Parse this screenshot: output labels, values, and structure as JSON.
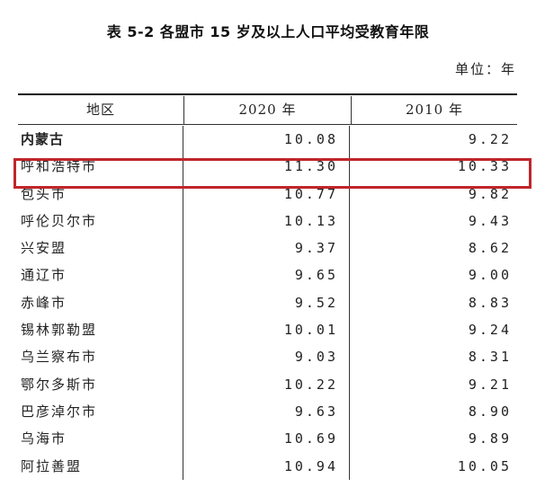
{
  "title": "表 5-2  各盟市 15 岁及以上人口平均受教育年限",
  "unit": "单位：年",
  "header": {
    "region": "地区",
    "year2020": "2020 年",
    "year2010": "2010 年"
  },
  "rows": [
    {
      "region": "内蒙古",
      "v2020": "10.08",
      "v2010": "9.22"
    },
    {
      "region": "呼和浩特市",
      "v2020": "11.30",
      "v2010": "10.33"
    },
    {
      "region": "包头市",
      "v2020": "10.77",
      "v2010": "9.82"
    },
    {
      "region": "呼伦贝尔市",
      "v2020": "10.13",
      "v2010": "9.43"
    },
    {
      "region": "兴安盟",
      "v2020": "9.37",
      "v2010": "8.62"
    },
    {
      "region": "通辽市",
      "v2020": "9.65",
      "v2010": "9.00"
    },
    {
      "region": "赤峰市",
      "v2020": "9.52",
      "v2010": "8.83"
    },
    {
      "region": "锡林郭勒盟",
      "v2020": "10.01",
      "v2010": "9.24"
    },
    {
      "region": "乌兰察布市",
      "v2020": "9.03",
      "v2010": "8.31"
    },
    {
      "region": "鄂尔多斯市",
      "v2020": "10.22",
      "v2010": "9.21"
    },
    {
      "region": "巴彦淖尔市",
      "v2020": "9.63",
      "v2010": "8.90"
    },
    {
      "region": "乌海市",
      "v2020": "10.69",
      "v2010": "9.89"
    },
    {
      "region": "阿拉善盟",
      "v2020": "10.94",
      "v2010": "10.05"
    }
  ],
  "highlight_color": "#c0252b"
}
